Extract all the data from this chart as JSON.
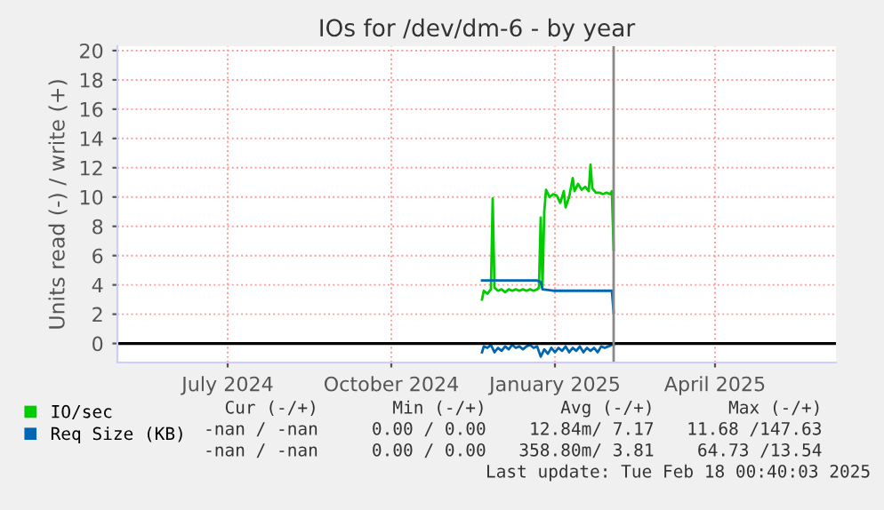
{
  "chart_data": {
    "type": "line",
    "title": "IOs for /dev/dm-6 - by year",
    "ylabel": "Units read (-) / write (+)",
    "xlim": [
      "2024-05-15",
      "2025-06-23"
    ],
    "xticks": [
      {
        "value": "2024-07-16",
        "label": "July 2024"
      },
      {
        "value": "2024-10-16",
        "label": "October 2024"
      },
      {
        "value": "2025-01-16",
        "label": "January 2025"
      },
      {
        "value": "2025-04-16",
        "label": "April 2025"
      }
    ],
    "ylim": [
      -1.3,
      20.3
    ],
    "yticks": [
      0,
      2,
      4,
      6,
      8,
      10,
      12,
      14,
      16,
      18,
      20
    ],
    "grid": true,
    "legend": "bottom left",
    "series": [
      {
        "name": "IO/sec",
        "color": "#00cc00",
        "x": [
          "2024-12-06",
          "2024-12-07",
          "2024-12-09",
          "2024-12-11",
          "2024-12-12",
          "2024-12-13",
          "2024-12-15",
          "2024-12-17",
          "2024-12-19",
          "2024-12-21",
          "2024-12-23",
          "2024-12-25",
          "2024-12-27",
          "2024-12-29",
          "2024-12-31",
          "2025-01-02",
          "2025-01-04",
          "2025-01-06",
          "2025-01-07",
          "2025-01-08",
          "2025-01-09",
          "2025-01-10",
          "2025-01-11",
          "2025-01-13",
          "2025-01-15",
          "2025-01-17",
          "2025-01-19",
          "2025-01-21",
          "2025-01-22",
          "2025-01-24",
          "2025-01-26",
          "2025-01-27",
          "2025-01-29",
          "2025-01-31",
          "2025-02-02",
          "2025-02-04",
          "2025-02-05",
          "2025-02-06",
          "2025-02-08",
          "2025-02-10",
          "2025-02-12",
          "2025-02-14",
          "2025-02-16",
          "2025-02-17",
          "2025-02-18"
        ],
        "values": [
          3.0,
          3.6,
          3.4,
          3.7,
          9.9,
          3.8,
          3.6,
          3.7,
          3.5,
          3.7,
          3.6,
          3.7,
          3.6,
          3.7,
          3.6,
          3.7,
          3.6,
          3.7,
          3.8,
          8.6,
          3.9,
          9.0,
          10.5,
          10.0,
          10.2,
          10.1,
          9.6,
          10.4,
          9.3,
          10.0,
          11.3,
          10.4,
          10.9,
          10.5,
          10.7,
          10.4,
          12.2,
          10.6,
          10.3,
          10.3,
          10.2,
          10.3,
          10.2,
          10.4,
          6.4
        ]
      },
      {
        "name": "Req Size (KB)",
        "color": "#0066b3",
        "x": [
          "2024-12-06",
          "2025-01-06",
          "2025-01-08",
          "2025-01-09",
          "2025-01-15",
          "2025-01-25",
          "2025-02-05",
          "2025-02-17",
          "2025-02-18"
        ],
        "values": [
          4.3,
          4.3,
          4.2,
          3.7,
          3.6,
          3.6,
          3.6,
          3.6,
          2.1
        ]
      },
      {
        "color": "#0066b3",
        "x": [
          "2024-12-06",
          "2024-12-07",
          "2024-12-09",
          "2024-12-11",
          "2024-12-13",
          "2024-12-15",
          "2024-12-17",
          "2024-12-19",
          "2024-12-21",
          "2024-12-23",
          "2024-12-25",
          "2024-12-27",
          "2024-12-29",
          "2024-12-31",
          "2025-01-02",
          "2025-01-04",
          "2025-01-06",
          "2025-01-08",
          "2025-01-10",
          "2025-01-12",
          "2025-01-14",
          "2025-01-16",
          "2025-01-18",
          "2025-01-20",
          "2025-01-22",
          "2025-01-24",
          "2025-01-26",
          "2025-01-28",
          "2025-01-30",
          "2025-02-01",
          "2025-02-03",
          "2025-02-05",
          "2025-02-07",
          "2025-02-09",
          "2025-02-11",
          "2025-02-13",
          "2025-02-15",
          "2025-02-17",
          "2025-02-18"
        ],
        "values": [
          -0.6,
          -0.2,
          -0.3,
          -0.1,
          -0.6,
          -0.3,
          -0.5,
          -0.2,
          -0.4,
          -0.1,
          -0.3,
          -0.2,
          -0.4,
          -0.2,
          -0.1,
          -0.3,
          -0.2,
          -0.9,
          -0.4,
          -0.7,
          -0.3,
          -0.6,
          -0.3,
          -0.5,
          -0.2,
          -0.6,
          -0.3,
          -0.5,
          -0.2,
          -0.6,
          -0.3,
          -0.5,
          -0.3,
          -0.6,
          -0.2,
          -0.3,
          -0.2,
          -0.1,
          -0.1
        ]
      }
    ],
    "ref_lines": [
      {
        "axis": "y",
        "value": 0,
        "color": "#000000"
      },
      {
        "axis": "x",
        "value": "2025-02-18",
        "color": "#888888"
      }
    ],
    "annotations": [
      "Cur (-/+)",
      "Min (-/+)",
      "Avg (-/+)",
      "Max (-/+)",
      "-nan / -nan",
      "0.00 / 0.00",
      "12.84m/ 7.17",
      "11.68 /147.63",
      "-nan / -nan",
      "0.00 / 0.00",
      "358.80m/ 3.81",
      "64.73 /13.54",
      "Last update: Tue Feb 18 00:40:03 2025"
    ]
  }
}
